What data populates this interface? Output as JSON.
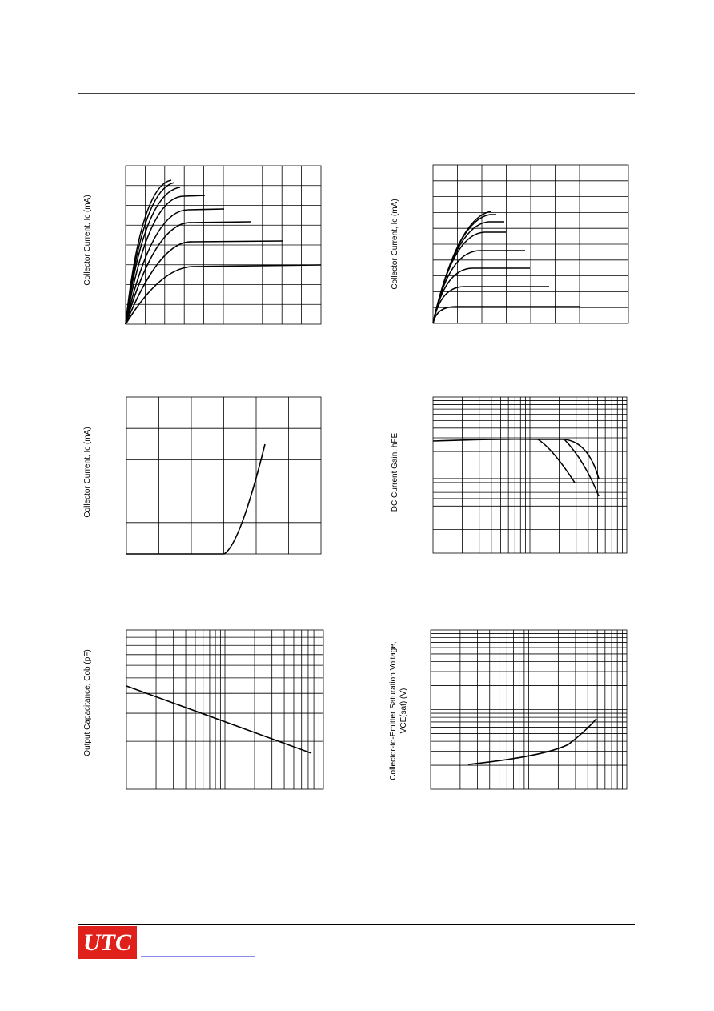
{
  "charts": [
    {
      "y_label": "Collector Current, Ic (mA)"
    },
    {
      "y_label": "Collector Current, Ic (mA)"
    },
    {
      "y_label": "Collector Current, Ic (mA)"
    },
    {
      "y_label": "DC Current Gain,  hFE"
    },
    {
      "y_label": "Output Capacitance, Cob (pF)"
    },
    {
      "y_label": "Collector-to-Emitter Saturation Voltage,",
      "y_label_2": "VCE(sat) (V)"
    }
  ],
  "footer": {
    "logo": "UTC"
  }
}
